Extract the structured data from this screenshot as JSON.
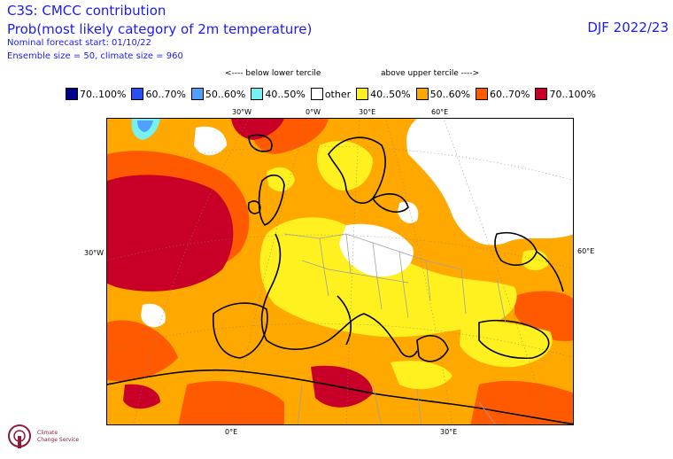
{
  "header": {
    "title": "C3S: CMCC contribution",
    "subtitle": "Prob(most likely category of 2m temperature)",
    "forecast_start": "Nominal forecast start: 01/10/22",
    "ensemble": "Ensemble size = 50, climate size = 960",
    "season": "DJF 2022/23"
  },
  "tercile_labels": {
    "below": "<---- below lower tercile",
    "above": "above upper tercile ---->"
  },
  "legend": [
    {
      "label": "70..100%",
      "color": "#00008c"
    },
    {
      "label": "60..70%",
      "color": "#2850f0"
    },
    {
      "label": "50..60%",
      "color": "#50a0ff"
    },
    {
      "label": "40..50%",
      "color": "#78f0f0"
    },
    {
      "label": "other",
      "color": "#ffffff"
    },
    {
      "label": "40..50%",
      "color": "#fff020"
    },
    {
      "label": "50..60%",
      "color": "#ffa800"
    },
    {
      "label": "60..70%",
      "color": "#ff5a00"
    },
    {
      "label": "70..100%",
      "color": "#c80028"
    }
  ],
  "axes": {
    "top": [
      "30°W",
      "0°W",
      "30°E",
      "60°E"
    ],
    "left": "30°W",
    "right": "60°E",
    "bottom": [
      "0°E",
      "30°E"
    ]
  },
  "logo": {
    "line1": "Climate",
    "line2": "Change Service"
  }
}
